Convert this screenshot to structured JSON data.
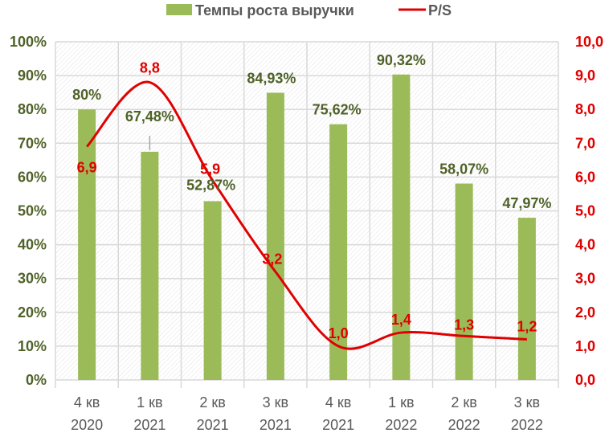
{
  "chart_data": {
    "type": "bar+line",
    "title": "",
    "categories": [
      "4 кв 2020",
      "1 кв 2021",
      "2 кв 2021",
      "3 кв 2021",
      "4 кв 2021",
      "1 кв 2022",
      "2 кв 2022",
      "3 кв 2022"
    ],
    "category_lines": [
      [
        "4 кв",
        "2020"
      ],
      [
        "1 кв",
        "2021"
      ],
      [
        "2 кв",
        "2021"
      ],
      [
        "3 кв",
        "2021"
      ],
      [
        "4 кв",
        "2021"
      ],
      [
        "1 кв",
        "2022"
      ],
      [
        "2 кв",
        "2022"
      ],
      [
        "3 кв",
        "2022"
      ]
    ],
    "series": [
      {
        "name": "Темпы роста выручки",
        "type": "bar",
        "axis": "left",
        "color": "#9BBB59",
        "values": [
          80,
          67.48,
          52.87,
          84.93,
          75.62,
          90.32,
          58.07,
          47.97
        ],
        "labels": [
          "80%",
          "67,48%",
          "52,87%",
          "84,93%",
          "75,62%",
          "90,32%",
          "58,07%",
          "47,97%"
        ]
      },
      {
        "name": "P/S",
        "type": "line",
        "smooth": true,
        "axis": "right",
        "color": "#E00000",
        "values": [
          6.9,
          8.8,
          5.9,
          3.2,
          1.0,
          1.4,
          1.3,
          1.2
        ],
        "labels": [
          "6,9",
          "8,8",
          "5,9",
          "3,2",
          "1,0",
          "1,4",
          "1,3",
          "1,2"
        ]
      }
    ],
    "y_left": {
      "ylim": [
        0,
        100
      ],
      "ticks": [
        "0%",
        "10%",
        "20%",
        "30%",
        "40%",
        "50%",
        "60%",
        "70%",
        "80%",
        "90%",
        "100%"
      ],
      "color": "#4F6228"
    },
    "y_right": {
      "ylim": [
        0,
        10
      ],
      "ticks": [
        "0,0",
        "1,0",
        "2,0",
        "3,0",
        "4,0",
        "5,0",
        "6,0",
        "7,0",
        "8,0",
        "9,0",
        "10,0"
      ],
      "color": "#E00000"
    },
    "legend": {
      "position": "top",
      "entries": [
        "Темпы роста выручки",
        "P/S"
      ]
    },
    "grid": true
  }
}
